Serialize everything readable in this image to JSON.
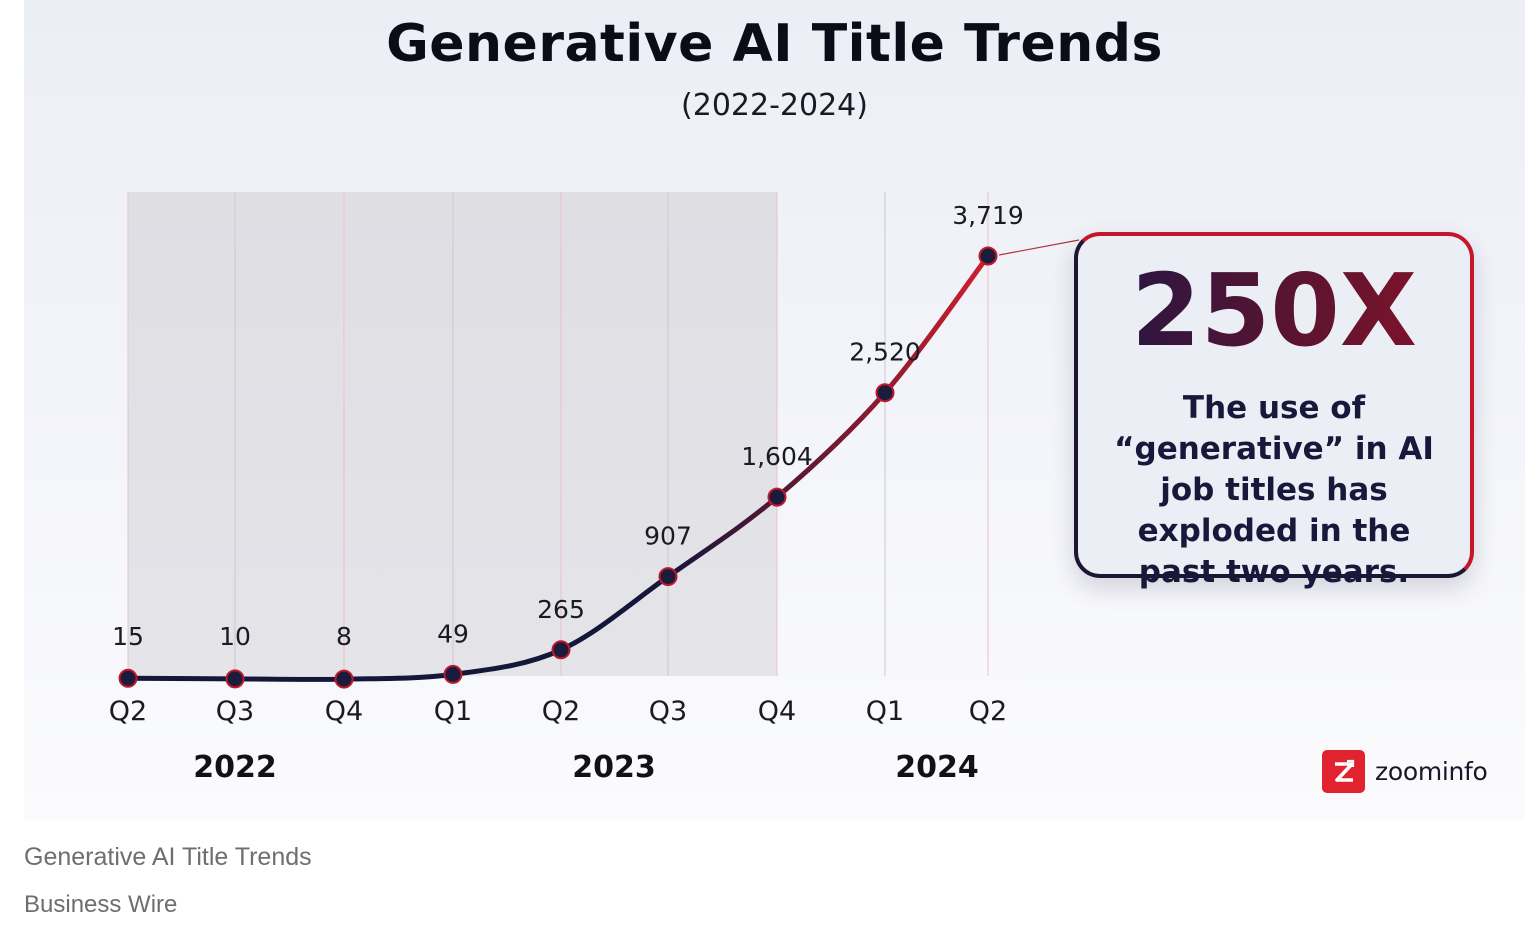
{
  "chart_data": {
    "type": "line",
    "title": "Generative AI Title Trends",
    "subtitle": "(2022-2024)",
    "categories": [
      "Q2",
      "Q3",
      "Q4",
      "Q1",
      "Q2",
      "Q3",
      "Q4",
      "Q1",
      "Q2"
    ],
    "years": [
      {
        "label": "2022",
        "quarters": [
          0,
          2
        ]
      },
      {
        "label": "2023",
        "quarters": [
          3,
          6
        ]
      },
      {
        "label": "2024",
        "quarters": [
          7,
          8
        ]
      }
    ],
    "values": [
      15,
      10,
      8,
      49,
      265,
      907,
      1604,
      2520,
      3719
    ],
    "value_labels": [
      "15",
      "10",
      "8",
      "49",
      "265",
      "907",
      "1,604",
      "2,520",
      "3,719"
    ],
    "ylim": [
      0,
      3719
    ],
    "xlabel": "",
    "ylabel": "",
    "shaded_range": "Q2 2022 – Q4 2023",
    "colors": {
      "line_dark": "#14163a",
      "line_red": "#d81f2c",
      "marker_fill": "#1b1b3c",
      "marker_edge": "#c0182c",
      "shade": "#e2e2e6"
    }
  },
  "callout": {
    "headline": "250X",
    "text": "The use of “generative” in AI job titles has exploded in the past two years."
  },
  "logo": {
    "icon": "zoominfo-z-logo-icon",
    "text": "zoominfo",
    "color": "#e0232e"
  },
  "caption": "Generative AI Title Trends",
  "source": "Business Wire"
}
